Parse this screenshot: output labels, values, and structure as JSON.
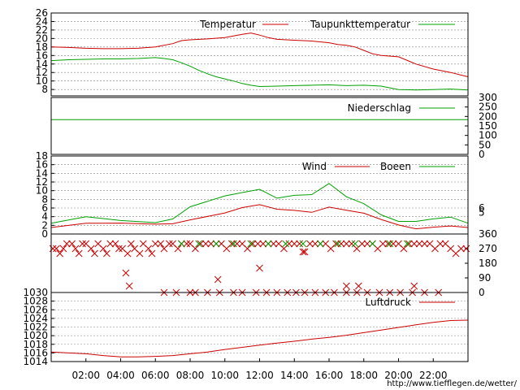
{
  "watermark": "http://www.tiefflegen.de/wetter/",
  "x_ticks": [
    "02:00",
    "04:00",
    "06:00",
    "08:00",
    "10:00",
    "12:00",
    "14:00",
    "16:00",
    "18:00",
    "20:00",
    "22:00"
  ],
  "colors": {
    "red": "#cc0000",
    "green": "#00a000",
    "grid": "#808080"
  },
  "chart_data": [
    {
      "type": "line",
      "panel": "temperature",
      "ylim": [
        6.5,
        26
      ],
      "yticks": [
        8,
        10,
        12,
        14,
        16,
        18,
        20,
        22,
        24,
        26
      ],
      "grid": true,
      "legend_placement": "top",
      "series": [
        {
          "name": "Temperatur",
          "color": "#cc0000",
          "x": [
            0,
            1,
            2,
            3,
            4,
            5,
            6,
            7,
            7.5,
            8,
            9,
            10,
            10.5,
            11,
            11.5,
            12,
            12.5,
            13,
            14,
            15,
            16,
            16.5,
            17,
            17.5,
            18,
            18.5,
            19,
            20,
            21,
            22,
            23,
            24
          ],
          "y": [
            18,
            17.9,
            17.7,
            17.6,
            17.6,
            17.7,
            18,
            18.8,
            19.5,
            19.7,
            19.9,
            20.2,
            20.6,
            21,
            21.3,
            20.8,
            20.2,
            19.8,
            19.6,
            19.4,
            19,
            18.6,
            18.4,
            18,
            17.2,
            16.4,
            16,
            15.7,
            14,
            12.8,
            12,
            11
          ]
        },
        {
          "name": "Taupunkttemperatur",
          "color": "#00a000",
          "x": [
            0,
            1,
            2,
            3,
            4,
            5,
            6,
            6.5,
            7,
            7.5,
            8,
            8.5,
            9,
            9.5,
            10,
            10.5,
            11,
            11.5,
            12,
            13,
            14,
            15,
            16,
            17,
            18,
            19,
            19.5,
            20,
            21,
            22,
            23,
            24
          ],
          "y": [
            14.8,
            15,
            15.1,
            15.2,
            15.2,
            15.3,
            15.5,
            15.3,
            15,
            14.3,
            13.5,
            12.5,
            11.7,
            11,
            10.5,
            10,
            9.4,
            9,
            8.7,
            8.8,
            8.9,
            9,
            9.1,
            8.9,
            9,
            8.8,
            8.4,
            8,
            7.9,
            8,
            8.1,
            7.9
          ]
        }
      ]
    },
    {
      "type": "line",
      "panel": "precipitation",
      "ylim": [
        0,
        300
      ],
      "yticks": [
        0,
        50,
        100,
        150,
        200,
        250,
        300
      ],
      "grid": false,
      "legend_placement": "top-right",
      "series": [
        {
          "name": "Niederschlag",
          "color": "#00a000",
          "x": [
            0,
            24
          ],
          "y": [
            183,
            183
          ]
        }
      ]
    },
    {
      "type": "line",
      "panel": "wind",
      "ylim": [
        0,
        18
      ],
      "yticks": [
        0,
        2,
        4,
        6,
        8,
        10,
        12,
        14,
        16,
        18
      ],
      "right_ticks": [
        5,
        6
      ],
      "grid": true,
      "legend_placement": "top-right",
      "series": [
        {
          "name": "Wind",
          "color": "#cc0000",
          "x": [
            0,
            2,
            4,
            6,
            7,
            8,
            10,
            11,
            12,
            13,
            14,
            15,
            16,
            17,
            18,
            19,
            20,
            21,
            22,
            23,
            24
          ],
          "y": [
            1.5,
            1.8,
            1.8,
            2.2,
            3,
            4,
            5,
            5.5,
            6,
            5.5,
            6,
            5.8,
            6.5,
            5,
            4,
            3,
            2.5,
            2,
            2,
            1.5,
            1.5
          ]
        },
        {
          "name": "Boeen",
          "color": "#00a000",
          "x": [
            0,
            2,
            4,
            6,
            7,
            8,
            10,
            11,
            12,
            13,
            14,
            15,
            16,
            17,
            18,
            19,
            20,
            21,
            22,
            23,
            24
          ],
          "y": [
            2.5,
            3,
            3,
            3.5,
            4.5,
            6.5,
            8,
            8.5,
            10,
            9,
            10,
            9.5,
            11,
            7.5,
            6.5,
            5,
            4,
            3.5,
            3,
            2.8,
            2.5
          ]
        }
      ]
    },
    {
      "type": "scatter",
      "panel": "wind-direction",
      "ylim": [
        0,
        360
      ],
      "yticks": [
        0,
        90,
        180,
        270,
        360
      ],
      "grid": false,
      "marker": "x",
      "series": [
        {
          "color": "#cc0000",
          "x": [
            0.1,
            0.3,
            0.5,
            0.7,
            0.9,
            1.2,
            1.4,
            1.6,
            1.8,
            2.0,
            2.3,
            2.5,
            2.7,
            3.0,
            3.2,
            3.4,
            3.7,
            3.9,
            4.1,
            4.4,
            4.6,
            4.8,
            5.1,
            5.3,
            5.6,
            5.8,
            6.0,
            6.3,
            6.5,
            6.8,
            7.0,
            7.3,
            7.5,
            7.8,
            8.0,
            8.3,
            8.6,
            8.9,
            9.2,
            9.5,
            9.8,
            10.1,
            10.4,
            10.7,
            11.0,
            11.3,
            11.6,
            11.9,
            12.2,
            12.5,
            12.8,
            13.1,
            13.4,
            13.7,
            14.0,
            14.3,
            14.6,
            14.9,
            15.2,
            15.5,
            15.8,
            16.1,
            16.4,
            16.7,
            17.0,
            17.3,
            17.6,
            17.9,
            18.2,
            18.5,
            18.8,
            19.1,
            19.4,
            19.7,
            20.0,
            20.3,
            20.6,
            20.9,
            21.2,
            21.5,
            21.8,
            22.1,
            22.4,
            22.7,
            23.0,
            23.3,
            23.6,
            23.9,
            4.3,
            4.5,
            9.6,
            12.0,
            14.5,
            17.0,
            17.7,
            20.9
          ],
          "y": [
            270,
            270,
            240,
            270,
            300,
            300,
            270,
            240,
            300,
            300,
            270,
            240,
            300,
            270,
            240,
            300,
            300,
            270,
            270,
            240,
            300,
            270,
            240,
            300,
            270,
            240,
            300,
            300,
            270,
            300,
            300,
            270,
            300,
            300,
            300,
            270,
            300,
            300,
            300,
            300,
            300,
            270,
            300,
            300,
            300,
            270,
            300,
            300,
            300,
            300,
            300,
            300,
            270,
            300,
            300,
            300,
            250,
            300,
            300,
            300,
            300,
            270,
            300,
            300,
            300,
            300,
            270,
            300,
            300,
            300,
            270,
            300,
            300,
            300,
            300,
            270,
            300,
            300,
            300,
            300,
            300,
            270,
            300,
            300,
            270,
            240,
            270,
            270,
            120,
            40,
            80,
            150,
            250,
            40,
            40,
            40
          ]
        },
        {
          "color": "#cc0000",
          "x": [
            6.5,
            7.2,
            8.0,
            8.3,
            9.0,
            9.7,
            10.5,
            11.0,
            11.8,
            12.4,
            13.0,
            13.6,
            14.1,
            14.6,
            15.2,
            15.8,
            16.3,
            17.0,
            17.6,
            18.2,
            18.9,
            19.5,
            20.1,
            20.8,
            21.5,
            22.3
          ],
          "y": [
            0,
            0,
            0,
            0,
            0,
            0,
            0,
            0,
            0,
            0,
            0,
            0,
            0,
            0,
            0,
            0,
            0,
            0,
            0,
            0,
            0,
            0,
            0,
            0,
            0,
            0
          ]
        },
        {
          "color": "#00a000",
          "x": [
            7.5,
            8.5,
            9.5,
            10.5,
            11.5,
            12.5,
            13.5,
            14.5,
            15.5,
            16.5,
            17.5,
            18.5,
            19.5,
            20.5
          ],
          "y": [
            300,
            300,
            300,
            300,
            300,
            300,
            300,
            300,
            300,
            300,
            300,
            300,
            300,
            300
          ]
        }
      ]
    },
    {
      "type": "line",
      "panel": "pressure",
      "ylim": [
        1014,
        1030
      ],
      "yticks": [
        1014,
        1016,
        1018,
        1020,
        1022,
        1024,
        1026,
        1028,
        1030
      ],
      "grid": true,
      "legend_placement": "top-right",
      "series": [
        {
          "name": "Luftdruck",
          "color": "#cc0000",
          "x": [
            0,
            1,
            2,
            3,
            4,
            5,
            6,
            7,
            8,
            9,
            10,
            11,
            12,
            13,
            14,
            15,
            16,
            17,
            18,
            19,
            20,
            21,
            22,
            23,
            24
          ],
          "y": [
            1016.2,
            1016,
            1015.8,
            1015.4,
            1015.1,
            1015.1,
            1015.2,
            1015.4,
            1015.8,
            1016.2,
            1016.8,
            1017.3,
            1017.8,
            1018.3,
            1018.7,
            1019.2,
            1019.6,
            1020.1,
            1020.7,
            1021.3,
            1021.9,
            1022.5,
            1023.1,
            1023.5,
            1023.6
          ]
        }
      ]
    }
  ]
}
